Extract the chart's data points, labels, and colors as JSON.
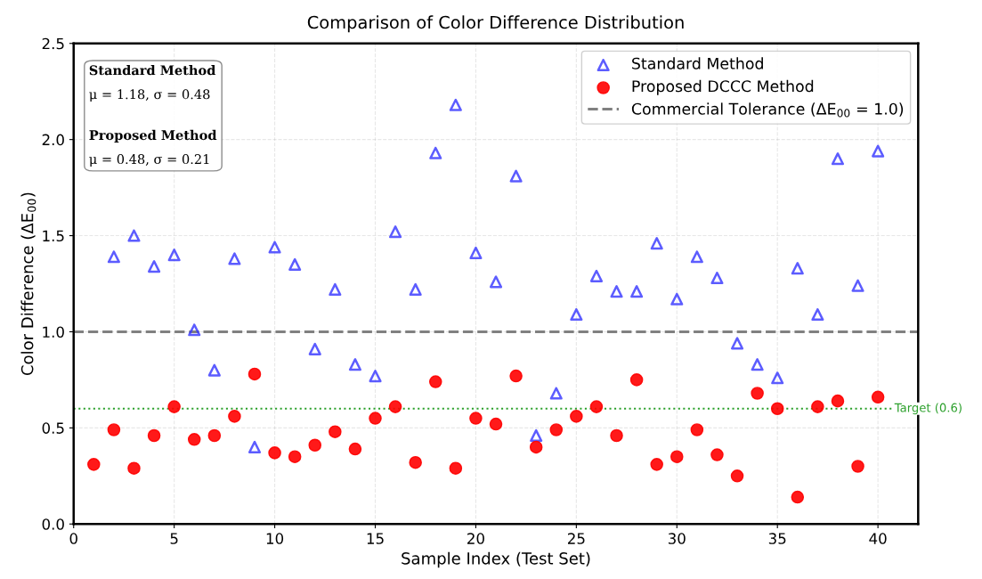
{
  "chart_data": {
    "type": "scatter",
    "title": "Comparison of Color Difference Distribution",
    "xlabel": "Sample Index (Test Set)",
    "ylabel": "Color Difference (ΔE$_{00}$)",
    "x": [
      1,
      2,
      3,
      4,
      5,
      6,
      7,
      8,
      9,
      10,
      11,
      12,
      13,
      14,
      15,
      16,
      17,
      18,
      19,
      20,
      21,
      22,
      23,
      24,
      25,
      26,
      27,
      28,
      29,
      30,
      31,
      32,
      33,
      34,
      35,
      36,
      37,
      38,
      39,
      40
    ],
    "series": [
      {
        "name": "Standard Method",
        "color": "#3333ff",
        "marker": "triangle",
        "values": [
          null,
          1.39,
          1.5,
          1.34,
          1.4,
          1.01,
          0.8,
          1.38,
          0.4,
          1.44,
          1.35,
          0.91,
          1.22,
          0.83,
          0.77,
          1.52,
          1.22,
          1.93,
          2.18,
          1.41,
          1.26,
          1.81,
          0.46,
          0.68,
          1.09,
          1.29,
          1.21,
          1.21,
          1.46,
          1.17,
          1.39,
          1.28,
          0.94,
          0.83,
          0.76,
          1.33,
          1.09,
          1.9,
          1.24,
          1.94
        ]
      },
      {
        "name": "Proposed DCCC Method",
        "color": "#ff0000",
        "marker": "circle",
        "values": [
          0.31,
          0.49,
          0.29,
          0.46,
          0.61,
          0.44,
          0.46,
          0.56,
          0.78,
          0.37,
          0.35,
          0.41,
          0.48,
          0.39,
          0.55,
          0.61,
          0.32,
          0.74,
          0.29,
          0.55,
          0.52,
          0.77,
          0.4,
          0.49,
          0.56,
          0.61,
          0.46,
          0.75,
          0.31,
          0.35,
          0.49,
          0.36,
          0.25,
          0.68,
          0.6,
          0.14,
          0.61,
          0.64,
          0.3,
          0.66
        ]
      }
    ],
    "ref_lines": [
      {
        "axis": "y",
        "value": 1.0,
        "label": "Commercial Tolerance (ΔE$_{00}$ = 1.0)",
        "color": "#808080",
        "line_style": "dashed"
      },
      {
        "axis": "y",
        "value": 0.6,
        "label": "Target (0.6)",
        "color": "#2ca02c",
        "line_style": "dotted"
      }
    ],
    "annotations": [
      "Standard Method",
      "μ = 1.18, σ = 0.48",
      "Proposed Method",
      "μ = 0.48, σ = 0.21"
    ],
    "xlim": [
      0,
      42
    ],
    "xticks": [
      0,
      5,
      10,
      15,
      20,
      25,
      30,
      35,
      40
    ],
    "ylim": [
      0,
      2.5
    ],
    "yticks": [
      {
        "value": 0,
        "label": "0.0"
      },
      0.5,
      {
        "value": 1,
        "label": "1.0"
      },
      1.5,
      {
        "value": 2,
        "label": "2.0"
      },
      2.5
    ],
    "grid": true,
    "legend": "top right"
  }
}
